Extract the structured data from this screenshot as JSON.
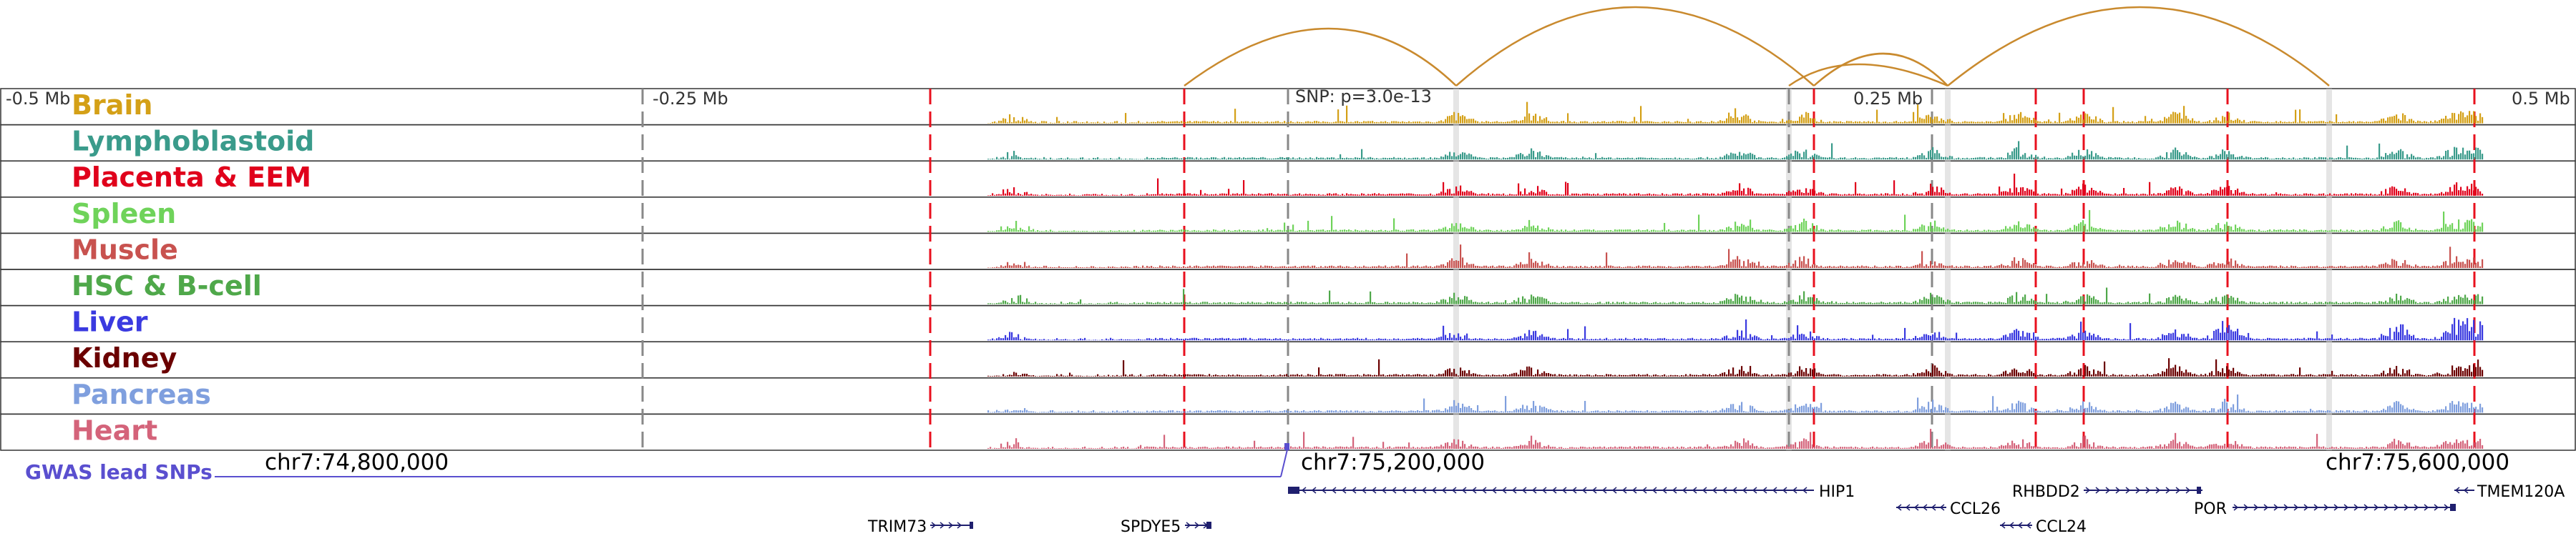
{
  "scale_labels": {
    "left": "-0.5 Mb",
    "mid_left": "-0.25 Mb",
    "mid_right": "0.25 Mb",
    "right": "0.5 Mb",
    "snp": "SNP: p=3.0e-13"
  },
  "tracks": [
    {
      "name": "Brain",
      "color": "#d4a017"
    },
    {
      "name": "Lymphoblastoid",
      "color": "#3a9b8b"
    },
    {
      "name": "Placenta & EEM",
      "color": "#e0001b"
    },
    {
      "name": "Spleen",
      "color": "#6fd35a"
    },
    {
      "name": "Muscle",
      "color": "#c8524f"
    },
    {
      "name": "HSC & B-cell",
      "color": "#4fa84a"
    },
    {
      "name": "Liver",
      "color": "#3a3ae0"
    },
    {
      "name": "Kidney",
      "color": "#6b0000"
    },
    {
      "name": "Pancreas",
      "color": "#7f9fde"
    },
    {
      "name": "Heart",
      "color": "#d4637a"
    }
  ],
  "coordinates": {
    "c1": "chr7:74,800,000",
    "c2": "chr7:75,200,000",
    "c3": "chr7:75,600,000"
  },
  "gwas_label": "GWAS lead SNPs",
  "genes": [
    {
      "name": "HIP1",
      "row": 1,
      "direction": "left"
    },
    {
      "name": "CCL26",
      "row": 2,
      "direction": "left"
    },
    {
      "name": "RHBDD2",
      "row": 1,
      "direction": "right"
    },
    {
      "name": "POR",
      "row": 2,
      "direction": "right"
    },
    {
      "name": "TMEM120A",
      "row": 1,
      "direction": "left"
    },
    {
      "name": "CCL24",
      "row": 3,
      "direction": "left"
    },
    {
      "name": "TRIM73",
      "row": 3,
      "direction": "right"
    },
    {
      "name": "SPDYE5",
      "row": 3,
      "direction": "right"
    }
  ],
  "colors": {
    "arc": "#c98a2e",
    "red_marker": "#e8101e",
    "gray_marker": "#888888",
    "gwas": "#5a4fcf",
    "gene": "#1f1f6e"
  }
}
